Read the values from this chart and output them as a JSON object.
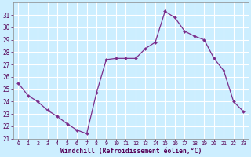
{
  "x": [
    0,
    1,
    2,
    3,
    4,
    5,
    6,
    7,
    8,
    9,
    10,
    11,
    12,
    13,
    14,
    15,
    16,
    17,
    18,
    19,
    20,
    21,
    22,
    23
  ],
  "y": [
    25.5,
    24.5,
    24.0,
    23.3,
    22.8,
    22.2,
    21.7,
    21.4,
    24.7,
    27.4,
    27.5,
    27.5,
    27.5,
    28.3,
    28.8,
    31.3,
    30.8,
    29.7,
    29.3,
    29.0,
    27.5,
    26.5,
    24.0,
    23.2
  ],
  "xlabel": "Windchill (Refroidissement éolien,°C)",
  "line_color": "#7b2d8b",
  "marker_color": "#7b2d8b",
  "bg_color": "#cceeff",
  "grid_color": "#aaddcc",
  "ylim_min": 21,
  "ylim_max": 32,
  "yticks": [
    21,
    22,
    23,
    24,
    25,
    26,
    27,
    28,
    29,
    30,
    31
  ],
  "xtick_labels": [
    "0",
    "1",
    "2",
    "3",
    "4",
    "5",
    "6",
    "7",
    "8",
    "9",
    "10",
    "11",
    "12",
    "13",
    "14",
    "15",
    "16",
    "17",
    "18",
    "19",
    "20",
    "21",
    "22",
    "23"
  ]
}
